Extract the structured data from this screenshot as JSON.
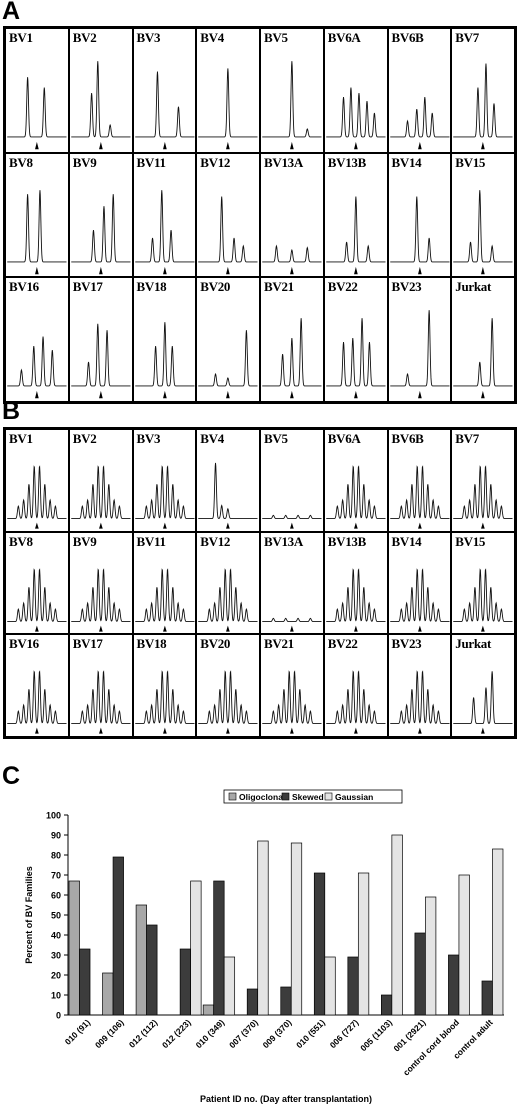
{
  "panels": {
    "a": {
      "letter": "A",
      "labels": [
        "BV1",
        "BV2",
        "BV3",
        "BV4",
        "BV5",
        "BV6A",
        "BV6B",
        "BV7",
        "BV8",
        "BV9",
        "BV11",
        "BV12",
        "BV13A",
        "BV13B",
        "BV14",
        "BV15",
        "BV16",
        "BV17",
        "BV18",
        "BV20",
        "BV21",
        "BV22",
        "BV23",
        "Jurkat"
      ]
    },
    "b": {
      "letter": "B",
      "labels": [
        "BV1",
        "BV2",
        "BV3",
        "BV4",
        "BV5",
        "BV6A",
        "BV6B",
        "BV7",
        "BV8",
        "BV9",
        "BV11",
        "BV12",
        "BV13A",
        "BV13B",
        "BV14",
        "BV15",
        "BV16",
        "BV17",
        "BV18",
        "BV20",
        "BV21",
        "BV22",
        "BV23",
        "Jurkat"
      ]
    },
    "c": {
      "letter": "C"
    }
  },
  "chart_data": {
    "type": "bar",
    "categories": [
      "010 (91)",
      "009 (106)",
      "012 (112)",
      "012 (223)",
      "010 (349)",
      "007 (370)",
      "009 (370)",
      "010 (551)",
      "006 (727)",
      "005 (1103)",
      "001 (2921)",
      "control cord blood",
      "control adult"
    ],
    "series": [
      {
        "name": "Oligoclonal",
        "color": "#a8a8a8",
        "values": [
          67,
          21,
          55,
          0,
          5,
          0,
          0,
          0,
          0,
          0,
          0,
          0,
          0
        ]
      },
      {
        "name": "Skewed",
        "color": "#3c3c3c",
        "values": [
          33,
          79,
          45,
          33,
          67,
          13,
          14,
          71,
          29,
          10,
          41,
          30,
          17
        ]
      },
      {
        "name": "Gaussian",
        "color": "#e4e4e4",
        "values": [
          0,
          0,
          0,
          67,
          29,
          87,
          86,
          29,
          71,
          90,
          59,
          70,
          83
        ]
      }
    ],
    "xlabel": "Patient ID no. (Day after transplantation)",
    "ylabel": "Percent of BV Families",
    "ylim": [
      0,
      100
    ],
    "yticks": [
      0,
      10,
      20,
      30,
      40,
      50,
      60,
      70,
      80,
      90,
      100
    ],
    "legend_position": "top",
    "grid": false
  }
}
